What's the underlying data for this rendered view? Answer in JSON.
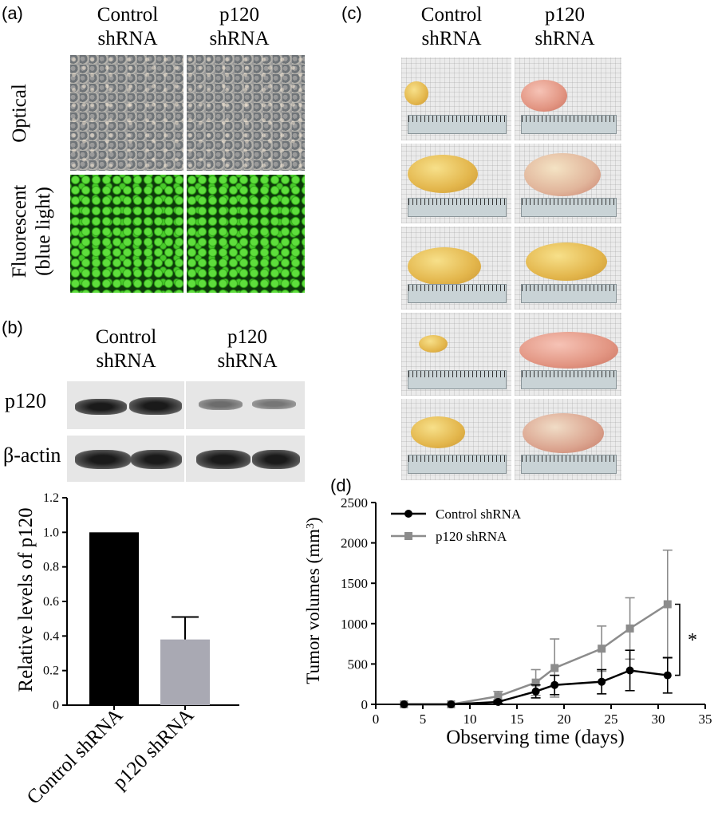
{
  "panel_a": {
    "label": "(a)",
    "col1": [
      "Control",
      "shRNA"
    ],
    "col2": [
      "p120",
      "shRNA"
    ],
    "row1": "Optical",
    "row2": [
      "Fluorescent",
      "(blue light)"
    ]
  },
  "panel_b": {
    "label": "(b)",
    "col1": [
      "Control",
      "shRNA"
    ],
    "col2": [
      "p120",
      "shRNA"
    ],
    "blot_labels": [
      "p120",
      "β-actin"
    ]
  },
  "panel_c": {
    "label": "(c)",
    "col1": [
      "Control",
      "shRNA"
    ],
    "col2": [
      "p120",
      "shRNA"
    ]
  },
  "panel_d": {
    "label": "(d)"
  },
  "chart_data": [
    {
      "type": "bar",
      "categories": [
        "Control shRNA",
        "p120 shRNA"
      ],
      "values": [
        1.0,
        0.38
      ],
      "errors": [
        0,
        0.13
      ],
      "colors": [
        "#000000",
        "#a9a9b3"
      ],
      "ylabel": "Relative levels of p120",
      "ylim": [
        0,
        1.2
      ],
      "yticks": [
        "0",
        "0.2",
        "0.4",
        "0.6",
        "0.8",
        "1.0",
        "1.2"
      ]
    },
    {
      "type": "line",
      "xlabel": "Observing time (days)",
      "ylabel_main": "Tumor volumes (mm",
      "ylabel_sup": "3",
      "ylabel_close": ")",
      "xlim": [
        0,
        35
      ],
      "ylim": [
        0,
        2500
      ],
      "xticks": [
        "0",
        "5",
        "10",
        "15",
        "20",
        "25",
        "30",
        "35"
      ],
      "yticks": [
        "0",
        "500",
        "1000",
        "1500",
        "2000",
        "2500"
      ],
      "legend_position": "top-left",
      "significance": "*",
      "series": [
        {
          "name": "Control shRNA",
          "color": "#000000",
          "marker": "circle",
          "x": [
            3,
            8,
            13,
            17,
            19,
            24,
            27,
            31
          ],
          "y": [
            0,
            0,
            30,
            160,
            240,
            280,
            420,
            360
          ],
          "err": [
            0,
            0,
            20,
            80,
            120,
            150,
            250,
            220
          ]
        },
        {
          "name": "p120 shRNA",
          "color": "#8c8c8c",
          "marker": "square",
          "x": [
            3,
            8,
            13,
            17,
            19,
            24,
            27,
            31
          ],
          "y": [
            0,
            0,
            100,
            270,
            450,
            690,
            940,
            1240
          ],
          "err": [
            0,
            0,
            60,
            160,
            360,
            280,
            380,
            670
          ]
        }
      ]
    }
  ]
}
